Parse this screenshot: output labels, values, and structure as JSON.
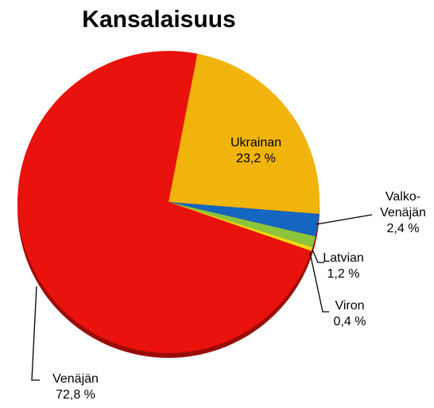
{
  "chart_data": {
    "type": "pie",
    "title": "Kansalaisuus",
    "categories": [
      "Ukrainan",
      "Valko-Venäjän",
      "Latvian",
      "Viron",
      "Venäjän"
    ],
    "values": [
      23.2,
      2.4,
      1.2,
      0.4,
      72.8
    ],
    "value_labels": [
      "23,2 %",
      "2,4 %",
      "1,2 %",
      "0,4 %",
      "72,8 %"
    ],
    "colors": [
      "#f0b40c",
      "#1466c0",
      "#8cc43c",
      "#f2dc10",
      "#ea120c"
    ]
  }
}
